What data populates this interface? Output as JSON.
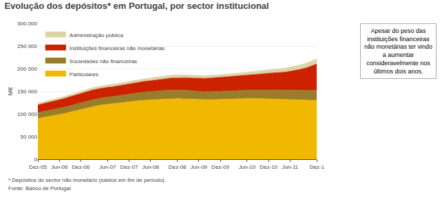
{
  "chart_data": {
    "type": "area",
    "stacked": true,
    "title": "Evolução dos depósitos* em Portugal, por sector institucional",
    "ylabel": "M€",
    "annotation": "Apesar do peso das\ninstituições financeiras\nnão monetárias ter vindo\na aumentar\nconsideravelmente nos\núltimos dois anos.",
    "footnotes": [
      "* Depósitos do sector não monetário (saldos em fim de período).",
      "Fonte: Banco de Portugal"
    ],
    "categories": [
      "Dez-05",
      null,
      null,
      null,
      "Jun-06",
      null,
      null,
      null,
      "Dez-06",
      null,
      null,
      null,
      null,
      "Jun-07",
      null,
      null,
      null,
      "Dez-07",
      null,
      null,
      null,
      "Jun-08",
      null,
      null,
      null,
      null,
      "Dez-08",
      null,
      null,
      null,
      "Jun-09",
      null,
      null,
      null,
      "Dez-09",
      null,
      null,
      null,
      null,
      "Jun-10",
      null,
      null,
      null,
      "Dez-10",
      null,
      null,
      null,
      "Jun-11",
      null,
      null,
      null,
      null,
      "Dez-1"
    ],
    "ylim": [
      0,
      300000
    ],
    "yticks": [
      0,
      {
        "value": 50000,
        "label": "50 000"
      },
      {
        "value": 100000,
        "label": "100 000"
      },
      {
        "value": 150000,
        "label": "150 000"
      },
      {
        "value": 200000,
        "label": "200 000"
      },
      {
        "value": 250000,
        "label": "250 000"
      },
      {
        "value": 300000,
        "label": "300.000"
      }
    ],
    "grid": true,
    "legend": "upper left",
    "series": [
      {
        "name": "Particulares",
        "color": "#f0b800",
        "values": [
          90000,
          92000,
          94500,
          97000,
          99000,
          101000,
          104000,
          107000,
          110000,
          113000,
          115500,
          118000,
          120000,
          121500,
          122500,
          124000,
          126000,
          127500,
          128500,
          129500,
          130500,
          131000,
          132000,
          133000,
          133500,
          134000,
          134000,
          133500,
          133000,
          132000,
          131500,
          131000,
          131500,
          132000,
          132500,
          133000,
          133500,
          134000,
          134500,
          135000,
          134500,
          134000,
          134000,
          133500,
          133000,
          132500,
          132000,
          131500,
          131000,
          130500,
          130000,
          130000,
          130000
        ]
      },
      {
        "name": "Sociedades não financeiras",
        "color": "#9a7d2a",
        "values": [
          13000,
          13200,
          13500,
          13700,
          13800,
          14000,
          14200,
          14500,
          14800,
          15000,
          15300,
          15500,
          15800,
          16000,
          16300,
          16500,
          16800,
          17000,
          17300,
          17500,
          17800,
          18000,
          18300,
          18500,
          18700,
          19000,
          19200,
          19000,
          18800,
          18500,
          18300,
          18000,
          17800,
          17500,
          17300,
          17200,
          17300,
          17500,
          17700,
          18000,
          18300,
          18700,
          19000,
          19500,
          20000,
          20200,
          20500,
          21000,
          21200,
          21500,
          21800,
          22000,
          22500
        ]
      },
      {
        "name": "Instituições financeiras não monetárias",
        "color": "#cc2200",
        "values": [
          17000,
          17500,
          18000,
          18500,
          19000,
          19500,
          20000,
          20500,
          21000,
          21200,
          21500,
          21500,
          21500,
          21500,
          21500,
          21800,
          22000,
          22500,
          23000,
          23500,
          24000,
          24500,
          25000,
          25500,
          26000,
          26500,
          27000,
          27500,
          28000,
          28500,
          29000,
          29500,
          30000,
          30500,
          31000,
          31500,
          32000,
          32500,
          33000,
          33500,
          34000,
          35000,
          36000,
          37000,
          38000,
          39000,
          40000,
          42000,
          44000,
          47000,
          50000,
          54000,
          58000
        ]
      },
      {
        "name": "Administração pública",
        "color": "#ddd5a8",
        "values": [
          4000,
          4100,
          4200,
          4300,
          4400,
          4500,
          4600,
          4700,
          4800,
          4900,
          5000,
          5100,
          5200,
          5300,
          5400,
          5500,
          5600,
          5700,
          5700,
          5800,
          5800,
          5900,
          6000,
          6100,
          6200,
          6300,
          6400,
          6300,
          6200,
          6100,
          6000,
          5900,
          5900,
          5800,
          5800,
          5800,
          5800,
          5900,
          6000,
          6100,
          6200,
          6500,
          6800,
          7200,
          7800,
          8300,
          8800,
          9200,
          9500,
          9800,
          10200,
          10800,
          11500
        ]
      }
    ]
  }
}
